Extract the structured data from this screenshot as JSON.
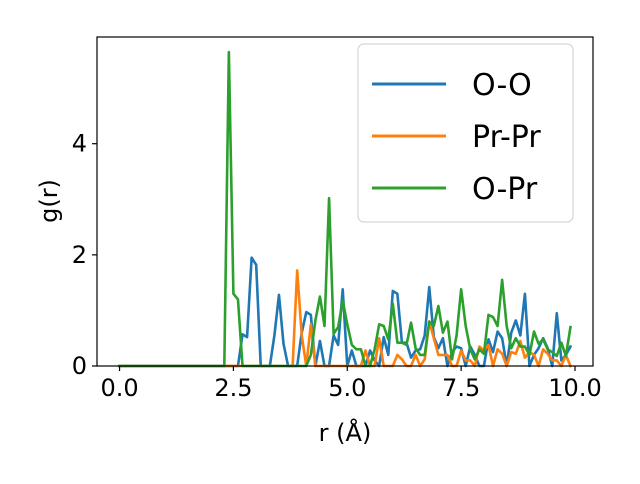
{
  "chart_data": {
    "type": "line",
    "title": "",
    "xlabel": "r (Å)",
    "ylabel": "g(r)",
    "xlim": [
      -0.495,
      10.395
    ],
    "ylim": [
      0,
      5.92
    ],
    "xticks": [
      0.0,
      2.5,
      5.0,
      7.5,
      10.0
    ],
    "xtick_labels": [
      "0.0",
      "2.5",
      "5.0",
      "7.5",
      "10.0"
    ],
    "yticks": [
      0,
      2,
      4
    ],
    "ytick_labels": [
      "0",
      "2",
      "4"
    ],
    "grid": false,
    "legend_position": "top-right",
    "x": [
      0.0,
      0.1,
      0.2,
      0.3,
      0.4,
      0.5,
      0.6,
      0.7,
      0.8,
      0.9,
      1.0,
      1.1,
      1.2,
      1.3,
      1.4,
      1.5,
      1.6,
      1.7,
      1.8,
      1.9,
      2.0,
      2.1,
      2.2,
      2.3,
      2.4,
      2.5,
      2.6,
      2.7,
      2.8,
      2.9,
      3.0,
      3.1,
      3.2,
      3.3,
      3.4,
      3.5,
      3.6,
      3.7,
      3.8,
      3.9,
      4.0,
      4.1,
      4.2,
      4.3,
      4.4,
      4.5,
      4.6,
      4.7,
      4.8,
      4.9,
      5.0,
      5.1,
      5.2,
      5.3,
      5.4,
      5.5,
      5.6,
      5.7,
      5.8,
      5.9,
      6.0,
      6.1,
      6.2,
      6.3,
      6.4,
      6.5,
      6.6,
      6.7,
      6.8,
      6.9,
      7.0,
      7.1,
      7.2,
      7.3,
      7.4,
      7.5,
      7.6,
      7.7,
      7.8,
      7.9,
      8.0,
      8.1,
      8.2,
      8.3,
      8.4,
      8.5,
      8.6,
      8.7,
      8.8,
      8.9,
      9.0,
      9.1,
      9.2,
      9.3,
      9.4,
      9.5,
      9.6,
      9.7,
      9.8,
      9.9
    ],
    "series": [
      {
        "name": "O-O",
        "color": "#1f77b4",
        "values": [
          0,
          0,
          0,
          0,
          0,
          0,
          0,
          0,
          0,
          0,
          0,
          0,
          0,
          0,
          0,
          0,
          0,
          0,
          0,
          0,
          0,
          0,
          0,
          0,
          0,
          0,
          0,
          0.57,
          0.52,
          1.95,
          1.82,
          0,
          0,
          0,
          0.55,
          1.28,
          0.4,
          0,
          0,
          0,
          0.6,
          0.97,
          0.92,
          0,
          0.45,
          0,
          0,
          0.55,
          0.38,
          1.38,
          0,
          0.28,
          0,
          0,
          0,
          0.28,
          0.1,
          0,
          0.52,
          0.2,
          1.35,
          1.3,
          0.42,
          0.42,
          0.15,
          0.28,
          0.3,
          0.55,
          1.42,
          0.52,
          0.32,
          0.5,
          0,
          0.25,
          0.35,
          0.32,
          0,
          0.35,
          0.2,
          0,
          0,
          0.48,
          0.25,
          0.62,
          0.5,
          0,
          0.6,
          0.82,
          0.55,
          1.3,
          0,
          0.2,
          0.32,
          0.5,
          0.32,
          0,
          0.95,
          0.1,
          0.2,
          0.35
        ],
        "label": "O-O"
      },
      {
        "name": "Pr-Pr",
        "color": "#ff7f0e",
        "values": [
          0,
          0,
          0,
          0,
          0,
          0,
          0,
          0,
          0,
          0,
          0,
          0,
          0,
          0,
          0,
          0,
          0,
          0,
          0,
          0,
          0,
          0,
          0,
          0,
          0,
          0,
          0,
          0,
          0,
          0,
          0,
          0,
          0,
          0,
          0,
          0,
          0,
          0,
          0,
          1.72,
          0.55,
          0,
          0.75,
          0,
          0,
          0,
          0,
          0,
          0,
          0,
          0,
          0,
          0,
          0,
          0.28,
          0,
          0,
          0.5,
          0,
          0,
          0,
          0.2,
          0.12,
          0,
          0,
          0.2,
          0,
          0.12,
          0.8,
          0.5,
          0.2,
          0.2,
          0.2,
          0,
          0,
          0.28,
          0.1,
          0.1,
          0,
          0.35,
          0.28,
          0.38,
          0,
          0.3,
          0.22,
          0,
          0.25,
          0.22,
          0.45,
          0.15,
          0.25,
          0.2,
          0,
          0.3,
          0.22,
          0.1,
          0.1,
          0,
          0.2,
          0
        ],
        "label": "Pr-Pr"
      },
      {
        "name": "O-Pr",
        "color": "#2ca02c",
        "values": [
          0,
          0,
          0,
          0,
          0,
          0,
          0,
          0,
          0,
          0,
          0,
          0,
          0,
          0,
          0,
          0,
          0,
          0,
          0,
          0,
          0,
          0,
          0,
          0,
          5.65,
          1.3,
          1.2,
          0,
          0,
          0,
          0,
          0,
          0,
          0,
          0,
          0,
          0,
          0,
          0,
          0,
          0,
          0,
          0.2,
          0.82,
          1.25,
          0.72,
          3.02,
          0.58,
          0.7,
          1.18,
          0.75,
          0.38,
          0.3,
          0.3,
          0,
          0,
          0.3,
          0.75,
          0.72,
          0.48,
          1.12,
          0.42,
          0.42,
          0.38,
          0.78,
          0.32,
          0.2,
          0.2,
          0.8,
          0.72,
          1.08,
          0.6,
          0.8,
          0.12,
          0.55,
          1.38,
          0.72,
          0.3,
          0.12,
          0.3,
          0.22,
          0.92,
          0.88,
          0.72,
          1.55,
          0.72,
          0.32,
          0.5,
          0.35,
          0.35,
          0.2,
          0.62,
          0.4,
          0.48,
          0.3,
          0.25,
          0.18,
          0.42,
          0.18,
          0.7
        ],
        "label": "O-Pr"
      }
    ]
  }
}
